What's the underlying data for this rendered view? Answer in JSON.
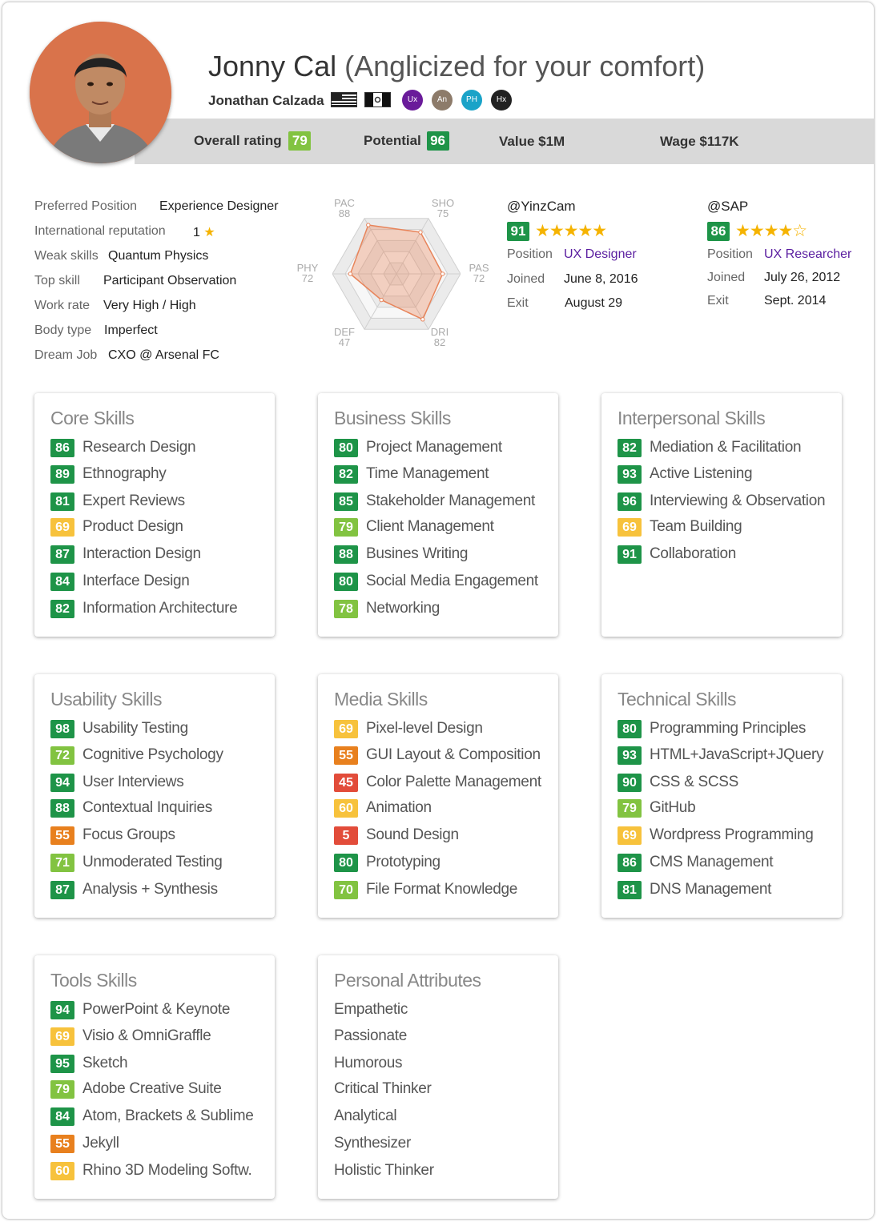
{
  "profile": {
    "name": "Jonny Cal",
    "name_aside": "(Anglicized for your comfort)",
    "full_name": "Jonathan Calzada",
    "flags": [
      "us-flag",
      "mexico-flag"
    ],
    "badges": [
      {
        "label": "Ux",
        "color": "#6a1b9a"
      },
      {
        "label": "An",
        "color": "#8d7b6a"
      },
      {
        "label": "PH",
        "color": "#1aa3c8"
      },
      {
        "label": "Hx",
        "color": "#222222"
      }
    ]
  },
  "ratings": {
    "overall_label": "Overall rating",
    "overall": "79",
    "potential_label": "Potential",
    "potential": "96",
    "value": "Value $1M",
    "wage": "Wage $117K"
  },
  "attributes": [
    {
      "label": "Preferred Position",
      "value": "Experience Designer"
    },
    {
      "label": "International reputation",
      "value": "1"
    },
    {
      "label": "Weak skills",
      "value": "Quantum Physics"
    },
    {
      "label": "Top skill",
      "value": "Participant Observation"
    },
    {
      "label": "Work rate",
      "value": "Very High / High"
    },
    {
      "label": "Body type",
      "value": "Imperfect"
    },
    {
      "label": "Dream Job",
      "value": "CXO @ Arsenal FC"
    }
  ],
  "radar": {
    "axes": [
      {
        "key": "PAC",
        "value": "88"
      },
      {
        "key": "SHO",
        "value": "75"
      },
      {
        "key": "PAS",
        "value": "72"
      },
      {
        "key": "DRI",
        "value": "82"
      },
      {
        "key": "DEF",
        "value": "47"
      },
      {
        "key": "PHY",
        "value": "72"
      }
    ],
    "max": 100,
    "fill_color": "#e8845a"
  },
  "clubs": [
    {
      "handle": "@YinzCam",
      "score": "91",
      "stars": "★★★★★",
      "position_label": "Position",
      "position": "UX Designer",
      "joined_label": "Joined",
      "joined": "June 8, 2016",
      "exit_label": "Exit",
      "exit": "August 29"
    },
    {
      "handle": "@SAP",
      "score": "86",
      "stars": "★★★★☆",
      "position_label": "Position",
      "position": "UX Researcher",
      "joined_label": "Joined",
      "joined": "July 26, 2012",
      "exit_label": "Exit",
      "exit": "Sept. 2014"
    }
  ],
  "skill_groups": [
    {
      "title": "Core Skills",
      "items": [
        {
          "score": "86",
          "name": "Research Design"
        },
        {
          "score": "89",
          "name": "Ethnography"
        },
        {
          "score": "81",
          "name": "Expert Reviews"
        },
        {
          "score": "69",
          "name": "Product Design"
        },
        {
          "score": "87",
          "name": "Interaction Design"
        },
        {
          "score": "84",
          "name": "Interface Design"
        },
        {
          "score": "82",
          "name": "Information Architecture"
        }
      ]
    },
    {
      "title": "Business Skills",
      "items": [
        {
          "score": "80",
          "name": "Project Management"
        },
        {
          "score": "82",
          "name": "Time Management"
        },
        {
          "score": "85",
          "name": "Stakeholder Management"
        },
        {
          "score": "79",
          "name": "Client Management"
        },
        {
          "score": "88",
          "name": "Busines Writing"
        },
        {
          "score": "80",
          "name": "Social Media Engagement"
        },
        {
          "score": "78",
          "name": "Networking"
        }
      ]
    },
    {
      "title": "Interpersonal Skills",
      "items": [
        {
          "score": "82",
          "name": "Mediation & Facilitation"
        },
        {
          "score": "93",
          "name": "Active Listening"
        },
        {
          "score": "96",
          "name": "Interviewing & Observation"
        },
        {
          "score": "69",
          "name": "Team Building"
        },
        {
          "score": "91",
          "name": "Collaboration"
        }
      ]
    },
    {
      "title": "Usability Skills",
      "items": [
        {
          "score": "98",
          "name": "Usability Testing"
        },
        {
          "score": "72",
          "name": "Cognitive Psychology"
        },
        {
          "score": "94",
          "name": "User Interviews"
        },
        {
          "score": "88",
          "name": "Contextual Inquiries"
        },
        {
          "score": "55",
          "name": "Focus Groups"
        },
        {
          "score": "71",
          "name": "Unmoderated Testing"
        },
        {
          "score": "87",
          "name": "Analysis + Synthesis"
        }
      ]
    },
    {
      "title": "Media Skills",
      "items": [
        {
          "score": "69",
          "name": "Pixel-level Design"
        },
        {
          "score": "55",
          "name": "GUI Layout & Composition"
        },
        {
          "score": "45",
          "name": "Color Palette Management"
        },
        {
          "score": "60",
          "name": "Animation"
        },
        {
          "score": "5",
          "name": "Sound Design"
        },
        {
          "score": "80",
          "name": "Prototyping"
        },
        {
          "score": "70",
          "name": "File Format Knowledge"
        }
      ]
    },
    {
      "title": "Technical Skills",
      "items": [
        {
          "score": "80",
          "name": "Programming Principles"
        },
        {
          "score": "93",
          "name": "HTML+JavaScript+JQuery"
        },
        {
          "score": "90",
          "name": "CSS & SCSS"
        },
        {
          "score": "79",
          "name": "GitHub"
        },
        {
          "score": "69",
          "name": "Wordpress Programming"
        },
        {
          "score": "86",
          "name": "CMS Management"
        },
        {
          "score": "81",
          "name": "DNS Management"
        }
      ]
    },
    {
      "title": "Tools Skills",
      "items": [
        {
          "score": "94",
          "name": "PowerPoint & Keynote"
        },
        {
          "score": "69",
          "name": "Visio & OmniGraffle"
        },
        {
          "score": "95",
          "name": "Sketch"
        },
        {
          "score": "79",
          "name": "Adobe Creative Suite"
        },
        {
          "score": "84",
          "name": "Atom, Brackets & Sublime"
        },
        {
          "score": "55",
          "name": "Jekyll"
        },
        {
          "score": "60",
          "name": "Rhino 3D Modeling Softw."
        }
      ]
    }
  ],
  "personal_attributes": {
    "title": "Personal Attributes",
    "items": [
      "Empathetic",
      "Passionate",
      "Humorous",
      "Critical Thinker",
      "Analytical",
      "Synthesizer",
      "Holistic Thinker"
    ]
  },
  "score_colors": {
    "dark_green": "#1e9448",
    "light_green": "#82c341",
    "yellow": "#f7c23c",
    "orange": "#e8801e",
    "red": "#e24c3a"
  }
}
